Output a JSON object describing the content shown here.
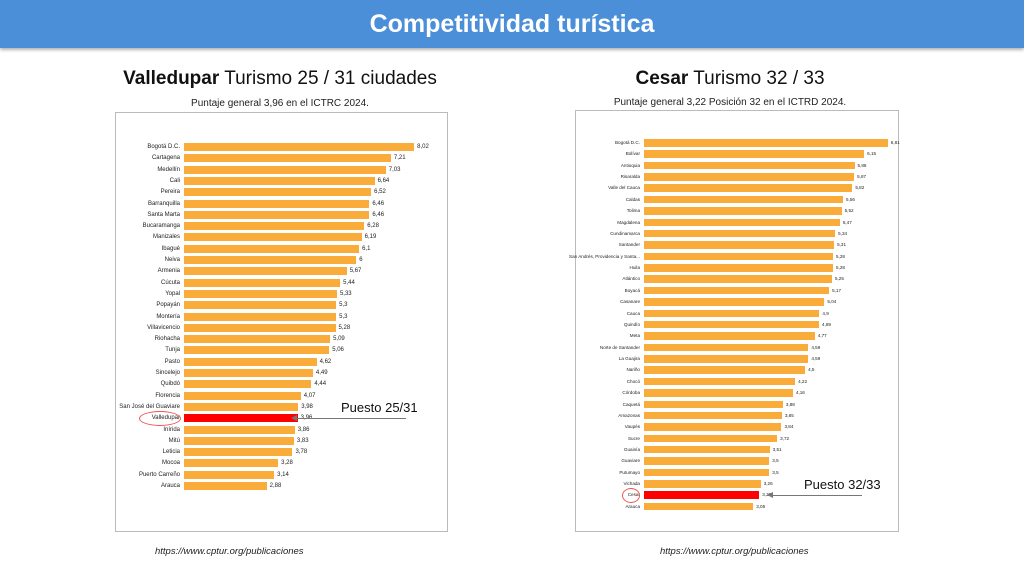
{
  "header": {
    "title": "Competitividad turística"
  },
  "colors": {
    "bar": "#f9ac3a",
    "highlight": "#ff0000",
    "header": "#4a8fd8"
  },
  "chart_data": [
    {
      "type": "bar",
      "orientation": "horizontal",
      "title_bold": "Valledupar",
      "title_rest": "Turismo 25 / 31 ciudades",
      "subtitle": "Puntaje general 3,96 en el ICTRC 2024.",
      "annotation": "Puesto 25/31",
      "highlight": "Valledupar",
      "source": "https://www.cptur.org/publicaciones",
      "categories": [
        "Bogotá D.C.",
        "Cartagena",
        "Medellín",
        "Cali",
        "Pereira",
        "Barranquilla",
        "Santa Marta",
        "Bucaramanga",
        "Manizales",
        "Ibagué",
        "Neiva",
        "Armenia",
        "Cúcuta",
        "Yopal",
        "Popayán",
        "Montería",
        "Villavicencio",
        "Riohacha",
        "Tunja",
        "Pasto",
        "Sincelejo",
        "Quibdó",
        "Florencia",
        "San José del Guaviare",
        "Valledupar",
        "Inírida",
        "Mitú",
        "Leticia",
        "Mocoa",
        "Puerto Carreño",
        "Arauca"
      ],
      "values": [
        8.02,
        7.21,
        7.03,
        6.64,
        6.52,
        6.46,
        6.46,
        6.28,
        6.19,
        6.1,
        6,
        5.67,
        5.44,
        5.33,
        5.3,
        5.3,
        5.28,
        5.09,
        5.06,
        4.62,
        4.49,
        4.44,
        4.07,
        3.98,
        3.96,
        3.86,
        3.83,
        3.78,
        3.28,
        3.14,
        2.88
      ],
      "labels": [
        "8,02",
        "7,21",
        "7,03",
        "6,64",
        "6,52",
        "6,46",
        "6,46",
        "6,28",
        "6,19",
        "6,1",
        "6",
        "5,67",
        "5,44",
        "5,33",
        "5,3",
        "5,3",
        "5,28",
        "5,09",
        "5,06",
        "4,62",
        "4,49",
        "4,44",
        "4,07",
        "3,98",
        "3,96",
        "3,86",
        "3,83",
        "3,78",
        "3,28",
        "3,14",
        "2,88"
      ]
    },
    {
      "type": "bar",
      "orientation": "horizontal",
      "title_bold": "Cesar",
      "title_rest": "Turismo 32 / 33",
      "subtitle": "Puntaje general 3,22 Posición 32 en el ICTRD 2024.",
      "annotation": "Puesto 32/33",
      "highlight": "Cesar",
      "source": "https://www.cptur.org/publicaciones",
      "categories": [
        "Bogotá D.C.",
        "Bolívar",
        "Antioquia",
        "Risaralda",
        "Valle del Cauca",
        "Caldas",
        "Tolima",
        "Magdalena",
        "Cundinamarca",
        "Santander",
        "San Andrés, Providencia y Santa...",
        "Huila",
        "Atlántico",
        "Boyacá",
        "Casanare",
        "Cauca",
        "Quindío",
        "Meta",
        "Norte de Santander",
        "La Guajira",
        "Nariño",
        "Chocó",
        "Córdoba",
        "Caquetá",
        "Amazonas",
        "Vaupés",
        "Sucre",
        "Guainía",
        "Guaviare",
        "Putumayo",
        "Vichada",
        "Cesar",
        "Arauca"
      ],
      "values": [
        6.81,
        6.15,
        5.88,
        5.87,
        5.82,
        5.56,
        5.52,
        5.47,
        5.34,
        5.31,
        5.28,
        5.28,
        5.25,
        5.17,
        5.04,
        4.9,
        4.89,
        4.77,
        4.59,
        4.59,
        4.5,
        4.22,
        4.16,
        3.88,
        3.85,
        3.84,
        3.72,
        3.51,
        3.5,
        3.5,
        3.26,
        3.22,
        3.05
      ],
      "labels": [
        "6,81",
        "6,15",
        "5,88",
        "5,87",
        "5,82",
        "5,56",
        "5,52",
        "5,47",
        "5,34",
        "5,31",
        "5,28",
        "5,28",
        "5,25",
        "5,17",
        "5,04",
        "4,9",
        "4,89",
        "4,77",
        "4,59",
        "4,59",
        "4,5",
        "4,22",
        "4,16",
        "3,88",
        "3,85",
        "3,84",
        "3,72",
        "3,51",
        "3,5",
        "3,5",
        "3,26",
        "3,22",
        "3,05"
      ]
    }
  ]
}
